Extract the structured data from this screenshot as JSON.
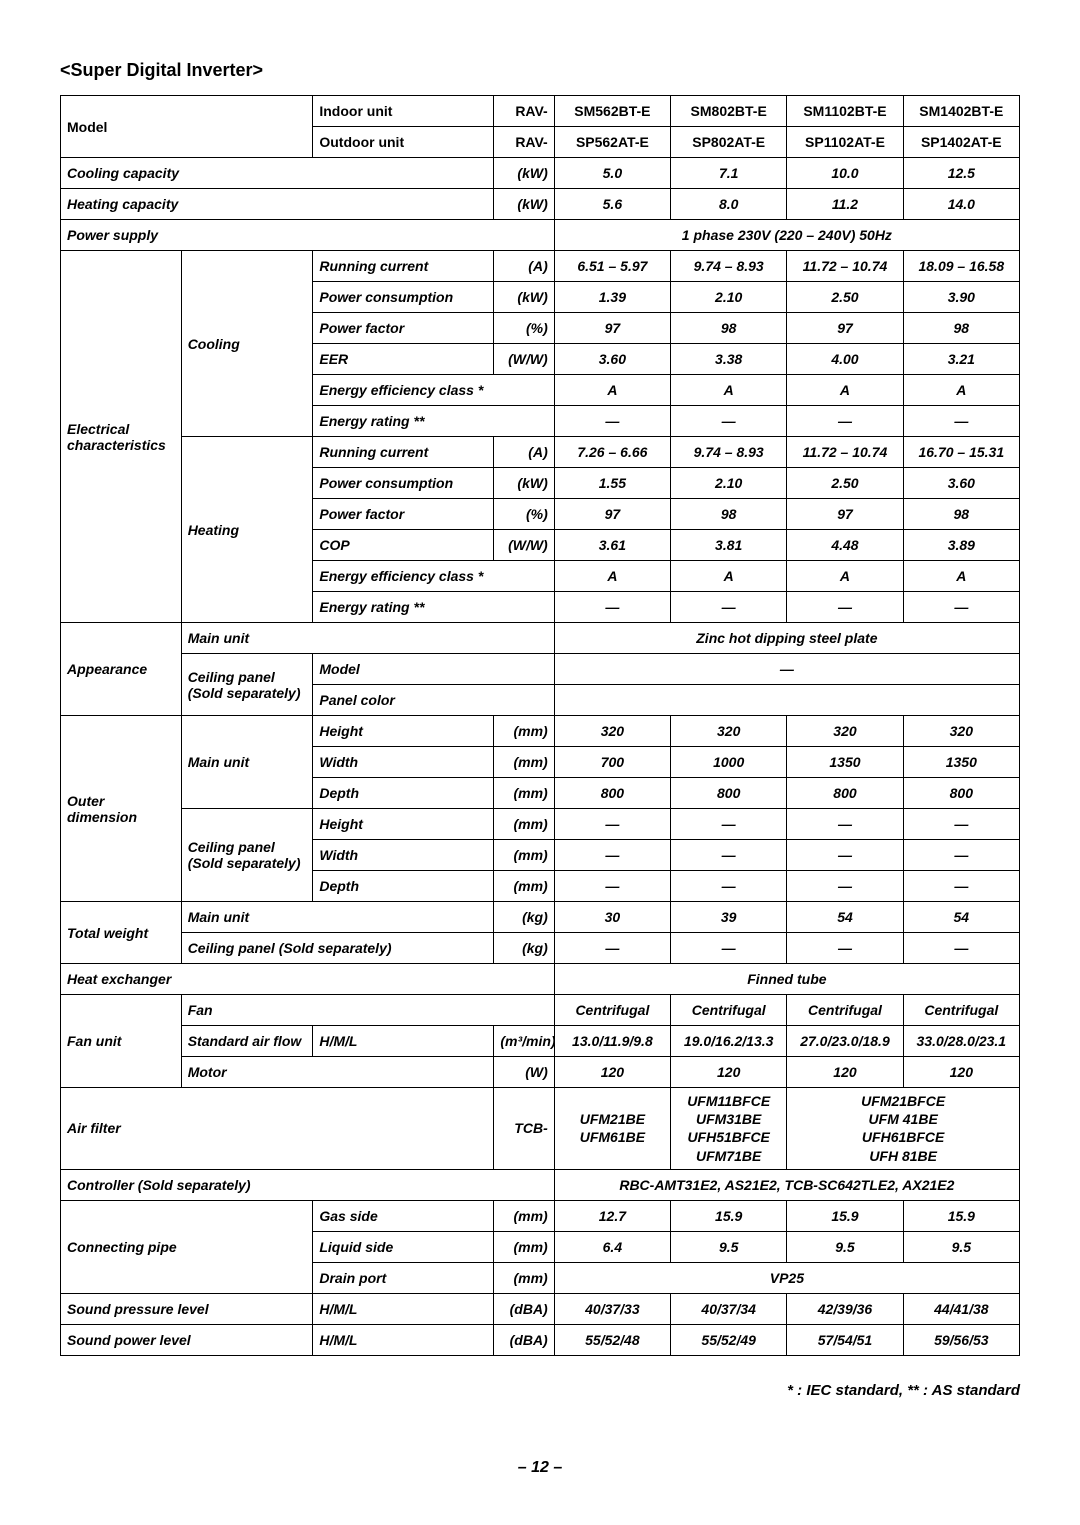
{
  "title": "<Super Digital Inverter>",
  "col_headers": {
    "model": "Model",
    "indoor": "Indoor unit",
    "outdoor": "Outdoor unit",
    "rav": "RAV-"
  },
  "models": {
    "indoor": [
      "SM562BT-E",
      "SM802BT-E",
      "SM1102BT-E",
      "SM1402BT-E"
    ],
    "outdoor": [
      "SP562AT-E",
      "SP802AT-E",
      "SP1102AT-E",
      "SP1402AT-E"
    ]
  },
  "labels": {
    "cooling_cap": "Cooling capacity",
    "kw": "(kW)",
    "heating_cap": "Heating capacity",
    "power_supply": "Power supply",
    "elec": "Electrical characteristics",
    "cooling": "Cooling",
    "heating": "Heating",
    "run_curr": "Running current",
    "a": "(A)",
    "pow_cons": "Power consumption",
    "pow_fac": "Power factor",
    "pct": "(%)",
    "eer": "EER",
    "ww": "(W/W)",
    "cop": "COP",
    "eff_class": "Energy efficiency class *",
    "erating": "Energy rating **",
    "appearance": "Appearance",
    "main_unit": "Main unit",
    "ceil_panel": "Ceiling panel (Sold separately)",
    "model_l": "Model",
    "panel_color": "Panel color",
    "outer_dim": "Outer dimension",
    "height": "Height",
    "width": "Width",
    "depth": "Depth",
    "mm": "(mm)",
    "total_weight": "Total weight",
    "kg": "(kg)",
    "heat_ex": "Heat exchanger",
    "fan_unit": "Fan unit",
    "fan": "Fan",
    "std_air": "Standard air flow",
    "hml": "H/M/L",
    "m3min": "(m³/min)",
    "motor": "Motor",
    "w": "(W)",
    "air_filter": "Air filter",
    "tcb": "TCB-",
    "controller": "Controller (Sold separately)",
    "conn_pipe": "Connecting pipe",
    "gas": "Gas side",
    "liquid": "Liquid side",
    "drain": "Drain port",
    "spl": "Sound pressure level",
    "swl": "Sound power level",
    "dba": "(dBA)"
  },
  "values": {
    "cooling_cap": [
      "5.0",
      "7.1",
      "10.0",
      "12.5"
    ],
    "heating_cap": [
      "5.6",
      "8.0",
      "11.2",
      "14.0"
    ],
    "power_supply": "1 phase 230V (220 – 240V) 50Hz",
    "c_run": [
      "6.51 – 5.97",
      "9.74 – 8.93",
      "11.72 – 10.74",
      "18.09 – 16.58"
    ],
    "c_pc": [
      "1.39",
      "2.10",
      "2.50",
      "3.90"
    ],
    "c_pf": [
      "97",
      "98",
      "97",
      "98"
    ],
    "c_eer": [
      "3.60",
      "3.38",
      "4.00",
      "3.21"
    ],
    "c_ec": [
      "A",
      "A",
      "A",
      "A"
    ],
    "c_er": [
      "—",
      "—",
      "—",
      "—"
    ],
    "h_run": [
      "7.26 – 6.66",
      "9.74 – 8.93",
      "11.72 – 10.74",
      "16.70 – 15.31"
    ],
    "h_pc": [
      "1.55",
      "2.10",
      "2.50",
      "3.60"
    ],
    "h_pf": [
      "97",
      "98",
      "97",
      "98"
    ],
    "h_cop": [
      "3.61",
      "3.81",
      "4.48",
      "3.89"
    ],
    "h_ec": [
      "A",
      "A",
      "A",
      "A"
    ],
    "h_er": [
      "—",
      "—",
      "—",
      "—"
    ],
    "main_unit_app": "Zinc hot dipping steel plate",
    "panel_model": "—",
    "panel_color": "",
    "mu_h": [
      "320",
      "320",
      "320",
      "320"
    ],
    "mu_w": [
      "700",
      "1000",
      "1350",
      "1350"
    ],
    "mu_d": [
      "800",
      "800",
      "800",
      "800"
    ],
    "cp_h": [
      "—",
      "—",
      "—",
      "—"
    ],
    "cp_w": [
      "—",
      "—",
      "—",
      "—"
    ],
    "cp_d": [
      "—",
      "—",
      "—",
      "—"
    ],
    "tw_mu": [
      "30",
      "39",
      "54",
      "54"
    ],
    "tw_cp": [
      "—",
      "—",
      "—",
      "—"
    ],
    "heat_ex": "Finned tube",
    "fan": [
      "Centrifugal",
      "Centrifugal",
      "Centrifugal",
      "Centrifugal"
    ],
    "air": [
      "13.0/11.9/9.8",
      "19.0/16.2/13.3",
      "27.0/23.0/18.9",
      "33.0/28.0/23.1"
    ],
    "motor": [
      "120",
      "120",
      "120",
      "120"
    ],
    "af1": "UFM21BE\nUFM61BE",
    "af2": "UFM11BFCE\nUFM31BE\nUFH51BFCE\nUFM71BE",
    "af3": "UFM21BFCE\nUFM 41BE\nUFH61BFCE\nUFH 81BE",
    "controller": "RBC-AMT31E2, AS21E2, TCB-SC642TLE2, AX21E2",
    "gas": [
      "12.7",
      "15.9",
      "15.9",
      "15.9"
    ],
    "liq": [
      "6.4",
      "9.5",
      "9.5",
      "9.5"
    ],
    "drain": "VP25",
    "spl": [
      "40/37/33",
      "40/37/34",
      "42/39/36",
      "44/41/38"
    ],
    "swl": [
      "55/52/48",
      "55/52/49",
      "57/54/51",
      "59/56/53"
    ]
  },
  "footnote": "* : IEC standard, ** : AS standard",
  "page": "– 12 –"
}
